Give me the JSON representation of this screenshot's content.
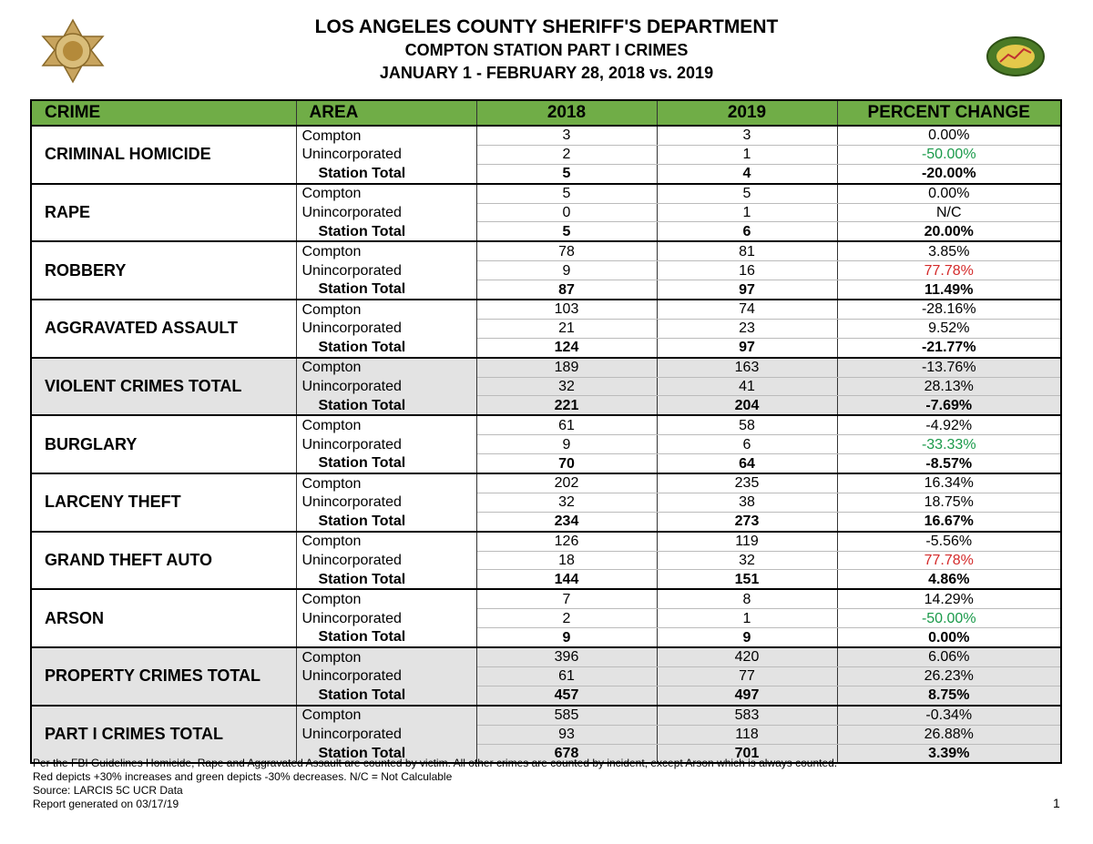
{
  "header": {
    "title": "LOS ANGELES COUNTY SHERIFF'S DEPARTMENT",
    "subtitle": "COMPTON STATION PART I CRIMES",
    "period": "JANUARY 1 - FEBRUARY 28, 2018 vs. 2019"
  },
  "table": {
    "columns": [
      "CRIME",
      "AREA",
      "2018",
      "2019",
      "PERCENT CHANGE"
    ],
    "groups": [
      {
        "crime": "CRIMINAL HOMICIDE",
        "shaded": false,
        "rows": [
          {
            "area": "Compton",
            "y2018": 3,
            "y2019": 3,
            "change": "0.00%"
          },
          {
            "area": "Unincorporated",
            "y2018": 2,
            "y2019": 1,
            "change": "-50.00%",
            "change_color": "#1a9a4a"
          },
          {
            "area": "Station Total",
            "y2018": 5,
            "y2019": 4,
            "change": "-20.00%"
          }
        ]
      },
      {
        "crime": "RAPE",
        "shaded": false,
        "rows": [
          {
            "area": "Compton",
            "y2018": 5,
            "y2019": 5,
            "change": "0.00%"
          },
          {
            "area": "Unincorporated",
            "y2018": 0,
            "y2019": 1,
            "change": "N/C"
          },
          {
            "area": "Station Total",
            "y2018": 5,
            "y2019": 6,
            "change": "20.00%"
          }
        ]
      },
      {
        "crime": "ROBBERY",
        "shaded": false,
        "rows": [
          {
            "area": "Compton",
            "y2018": 78,
            "y2019": 81,
            "change": "3.85%"
          },
          {
            "area": "Unincorporated",
            "y2018": 9,
            "y2019": 16,
            "change": "77.78%",
            "change_color": "#d42a2a"
          },
          {
            "area": "Station Total",
            "y2018": 87,
            "y2019": 97,
            "change": "11.49%"
          }
        ]
      },
      {
        "crime": "AGGRAVATED ASSAULT",
        "shaded": false,
        "rows": [
          {
            "area": "Compton",
            "y2018": 103,
            "y2019": 74,
            "change": "-28.16%"
          },
          {
            "area": "Unincorporated",
            "y2018": 21,
            "y2019": 23,
            "change": "9.52%"
          },
          {
            "area": "Station Total",
            "y2018": 124,
            "y2019": 97,
            "change": "-21.77%"
          }
        ]
      },
      {
        "crime": "VIOLENT CRIMES TOTAL",
        "shaded": true,
        "rows": [
          {
            "area": "Compton",
            "y2018": 189,
            "y2019": 163,
            "change": "-13.76%"
          },
          {
            "area": "Unincorporated",
            "y2018": 32,
            "y2019": 41,
            "change": "28.13%"
          },
          {
            "area": "Station Total",
            "y2018": 221,
            "y2019": 204,
            "change": "-7.69%"
          }
        ]
      },
      {
        "crime": "BURGLARY",
        "shaded": false,
        "rows": [
          {
            "area": "Compton",
            "y2018": 61,
            "y2019": 58,
            "change": "-4.92%"
          },
          {
            "area": "Unincorporated",
            "y2018": 9,
            "y2019": 6,
            "change": "-33.33%",
            "change_color": "#1a9a4a"
          },
          {
            "area": "Station Total",
            "y2018": 70,
            "y2019": 64,
            "change": "-8.57%"
          }
        ]
      },
      {
        "crime": "LARCENY THEFT",
        "shaded": false,
        "rows": [
          {
            "area": "Compton",
            "y2018": 202,
            "y2019": 235,
            "change": "16.34%"
          },
          {
            "area": "Unincorporated",
            "y2018": 32,
            "y2019": 38,
            "change": "18.75%"
          },
          {
            "area": "Station Total",
            "y2018": 234,
            "y2019": 273,
            "change": "16.67%"
          }
        ]
      },
      {
        "crime": "GRAND THEFT AUTO",
        "shaded": false,
        "rows": [
          {
            "area": "Compton",
            "y2018": 126,
            "y2019": 119,
            "change": "-5.56%"
          },
          {
            "area": "Unincorporated",
            "y2018": 18,
            "y2019": 32,
            "change": "77.78%",
            "change_color": "#d42a2a"
          },
          {
            "area": "Station Total",
            "y2018": 144,
            "y2019": 151,
            "change": "4.86%"
          }
        ]
      },
      {
        "crime": "ARSON",
        "shaded": false,
        "rows": [
          {
            "area": "Compton",
            "y2018": 7,
            "y2019": 8,
            "change": "14.29%"
          },
          {
            "area": "Unincorporated",
            "y2018": 2,
            "y2019": 1,
            "change": "-50.00%",
            "change_color": "#1a9a4a"
          },
          {
            "area": "Station Total",
            "y2018": 9,
            "y2019": 9,
            "change": "0.00%"
          }
        ]
      },
      {
        "crime": "PROPERTY CRIMES TOTAL",
        "shaded": true,
        "rows": [
          {
            "area": "Compton",
            "y2018": 396,
            "y2019": 420,
            "change": "6.06%"
          },
          {
            "area": "Unincorporated",
            "y2018": 61,
            "y2019": 77,
            "change": "26.23%"
          },
          {
            "area": "Station Total",
            "y2018": 457,
            "y2019": 497,
            "change": "8.75%"
          }
        ]
      },
      {
        "crime": "PART I CRIMES TOTAL",
        "shaded": true,
        "rows": [
          {
            "area": "Compton",
            "y2018": 585,
            "y2019": 583,
            "change": "-0.34%"
          },
          {
            "area": "Unincorporated",
            "y2018": 93,
            "y2019": 118,
            "change": "26.88%"
          },
          {
            "area": "Station Total",
            "y2018": 678,
            "y2019": 701,
            "change": "3.39%"
          }
        ]
      }
    ]
  },
  "footer": {
    "notes": [
      "Per the FBI Guidelines Homicide, Rape and Aggravated Assault are counted by victim. All other crimes are counted by incident, except Arson which is always counted.",
      "Red depicts +30% increases and green depicts -30% decreases. N/C = Not Calculable",
      "Source: LARCIS 5C UCR Data",
      "Report generated on 03/17/19"
    ],
    "page_number": "1"
  }
}
